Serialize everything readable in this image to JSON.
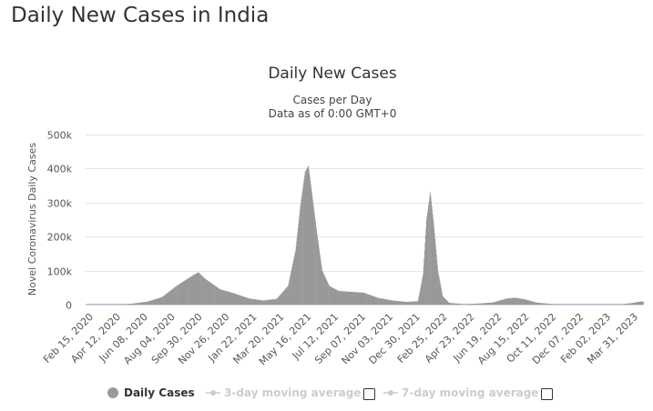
{
  "page": {
    "title": "Daily New Cases in India"
  },
  "legend": {
    "items": [
      {
        "label": "Daily Cases",
        "color": "#999999",
        "active": true
      },
      {
        "label": "3-day moving average",
        "color": "#cccccc",
        "active": false
      },
      {
        "label": "7-day moving average",
        "color": "#cccccc",
        "active": false
      }
    ]
  },
  "chart_data": {
    "type": "bar",
    "title": "Daily New Cases",
    "subtitle": [
      "Cases per Day",
      "Data as of 0:00 GMT+0"
    ],
    "ylabel": "Novel Coronavirus Daily Cases",
    "xlabel": "",
    "ylim": [
      0,
      500000
    ],
    "yticks": [
      {
        "value": 0,
        "label": "0"
      },
      {
        "value": 100000,
        "label": "100k"
      },
      {
        "value": 200000,
        "label": "200k"
      },
      {
        "value": 300000,
        "label": "300k"
      },
      {
        "value": 400000,
        "label": "400k"
      },
      {
        "value": 500000,
        "label": "500k"
      }
    ],
    "xlim": [
      "2020-01-22",
      "2023-04-16"
    ],
    "xtick_labels": [
      "Feb 15, 2020",
      "Apr 12, 2020",
      "Jun 08, 2020",
      "Aug 04, 2020",
      "Sep 30, 2020",
      "Nov 26, 2020",
      "Jan 22, 2021",
      "Mar 20, 2021",
      "May 16, 2021",
      "Jul 12, 2021",
      "Sep 07, 2021",
      "Nov 03, 2021",
      "Dec 30, 2021",
      "Feb 25, 2022",
      "Apr 23, 2022",
      "Jun 19, 2022",
      "Aug 15, 2022",
      "Oct 11, 2022",
      "Dec 07, 2022",
      "Feb 02, 2023",
      "Mar 31, 2023"
    ],
    "grid": true,
    "series": [
      {
        "name": "Daily Cases",
        "color": "#999999",
        "x": [
          "2020-01-22",
          "2020-03-01",
          "2020-04-01",
          "2020-05-01",
          "2020-06-01",
          "2020-07-01",
          "2020-08-01",
          "2020-09-01",
          "2020-09-16",
          "2020-10-01",
          "2020-11-01",
          "2020-12-01",
          "2021-01-01",
          "2021-02-01",
          "2021-03-01",
          "2021-03-25",
          "2021-04-10",
          "2021-04-20",
          "2021-04-30",
          "2021-05-07",
          "2021-05-15",
          "2021-05-25",
          "2021-06-05",
          "2021-06-20",
          "2021-07-10",
          "2021-08-01",
          "2021-09-01",
          "2021-10-01",
          "2021-11-01",
          "2021-12-01",
          "2021-12-25",
          "2022-01-05",
          "2022-01-12",
          "2022-01-20",
          "2022-01-27",
          "2022-02-05",
          "2022-02-15",
          "2022-03-01",
          "2022-04-01",
          "2022-05-01",
          "2022-06-01",
          "2022-07-01",
          "2022-07-20",
          "2022-08-10",
          "2022-09-01",
          "2022-10-01",
          "2022-11-01",
          "2022-12-01",
          "2023-01-01",
          "2023-02-01",
          "2023-03-01",
          "2023-03-20",
          "2023-04-10"
        ],
        "values": [
          0,
          50,
          500,
          3000,
          9000,
          22000,
          55000,
          83000,
          95000,
          75000,
          45000,
          33000,
          18000,
          12000,
          17000,
          55000,
          160000,
          290000,
          390000,
          408000,
          320000,
          210000,
          100000,
          55000,
          40000,
          38000,
          35000,
          20000,
          12000,
          8000,
          10000,
          90000,
          250000,
          330000,
          240000,
          100000,
          25000,
          5000,
          1500,
          3000,
          6000,
          18000,
          20000,
          15000,
          6000,
          2000,
          1000,
          500,
          200,
          150,
          1000,
          4000,
          9000
        ]
      }
    ]
  }
}
